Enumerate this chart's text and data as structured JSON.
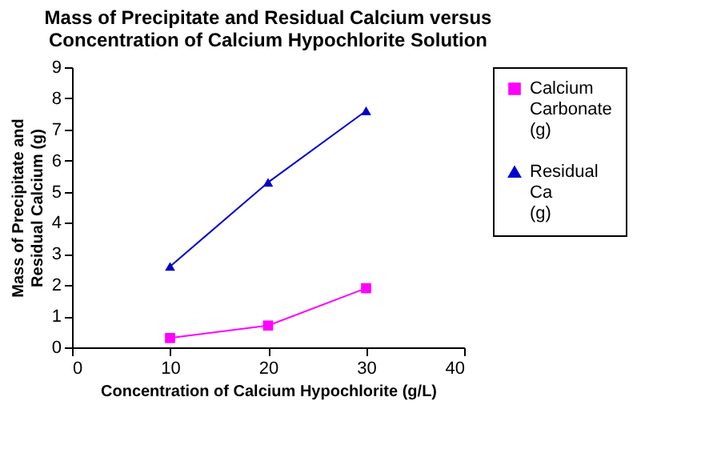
{
  "chart_data": {
    "type": "line",
    "title": "Mass of Precipitate and Residual Calcium versus Concentration of Calcium Hypochlorite Solution",
    "xlabel": "Concentration of Calcium Hypochlorite (g/L)",
    "ylabel": "Mass of Precipitate and Residual Calcium (g)",
    "x": [
      10,
      20,
      30
    ],
    "series": [
      {
        "name": "Calcium Carbonate (g)",
        "color": "#ff00ff",
        "marker": "square",
        "values": [
          0.3,
          0.7,
          1.9
        ]
      },
      {
        "name": "Residual Ca (g)",
        "color": "#0000cc",
        "marker": "triangle",
        "values": [
          2.6,
          5.3,
          7.6
        ]
      }
    ],
    "xlim": [
      0,
      40
    ],
    "xticks": [
      0,
      10,
      20,
      30,
      40
    ],
    "ylim": [
      0,
      9
    ],
    "yticks": [
      0,
      1,
      2,
      3,
      4,
      5,
      6,
      7,
      8,
      9
    ],
    "grid": false,
    "legend": "right"
  }
}
